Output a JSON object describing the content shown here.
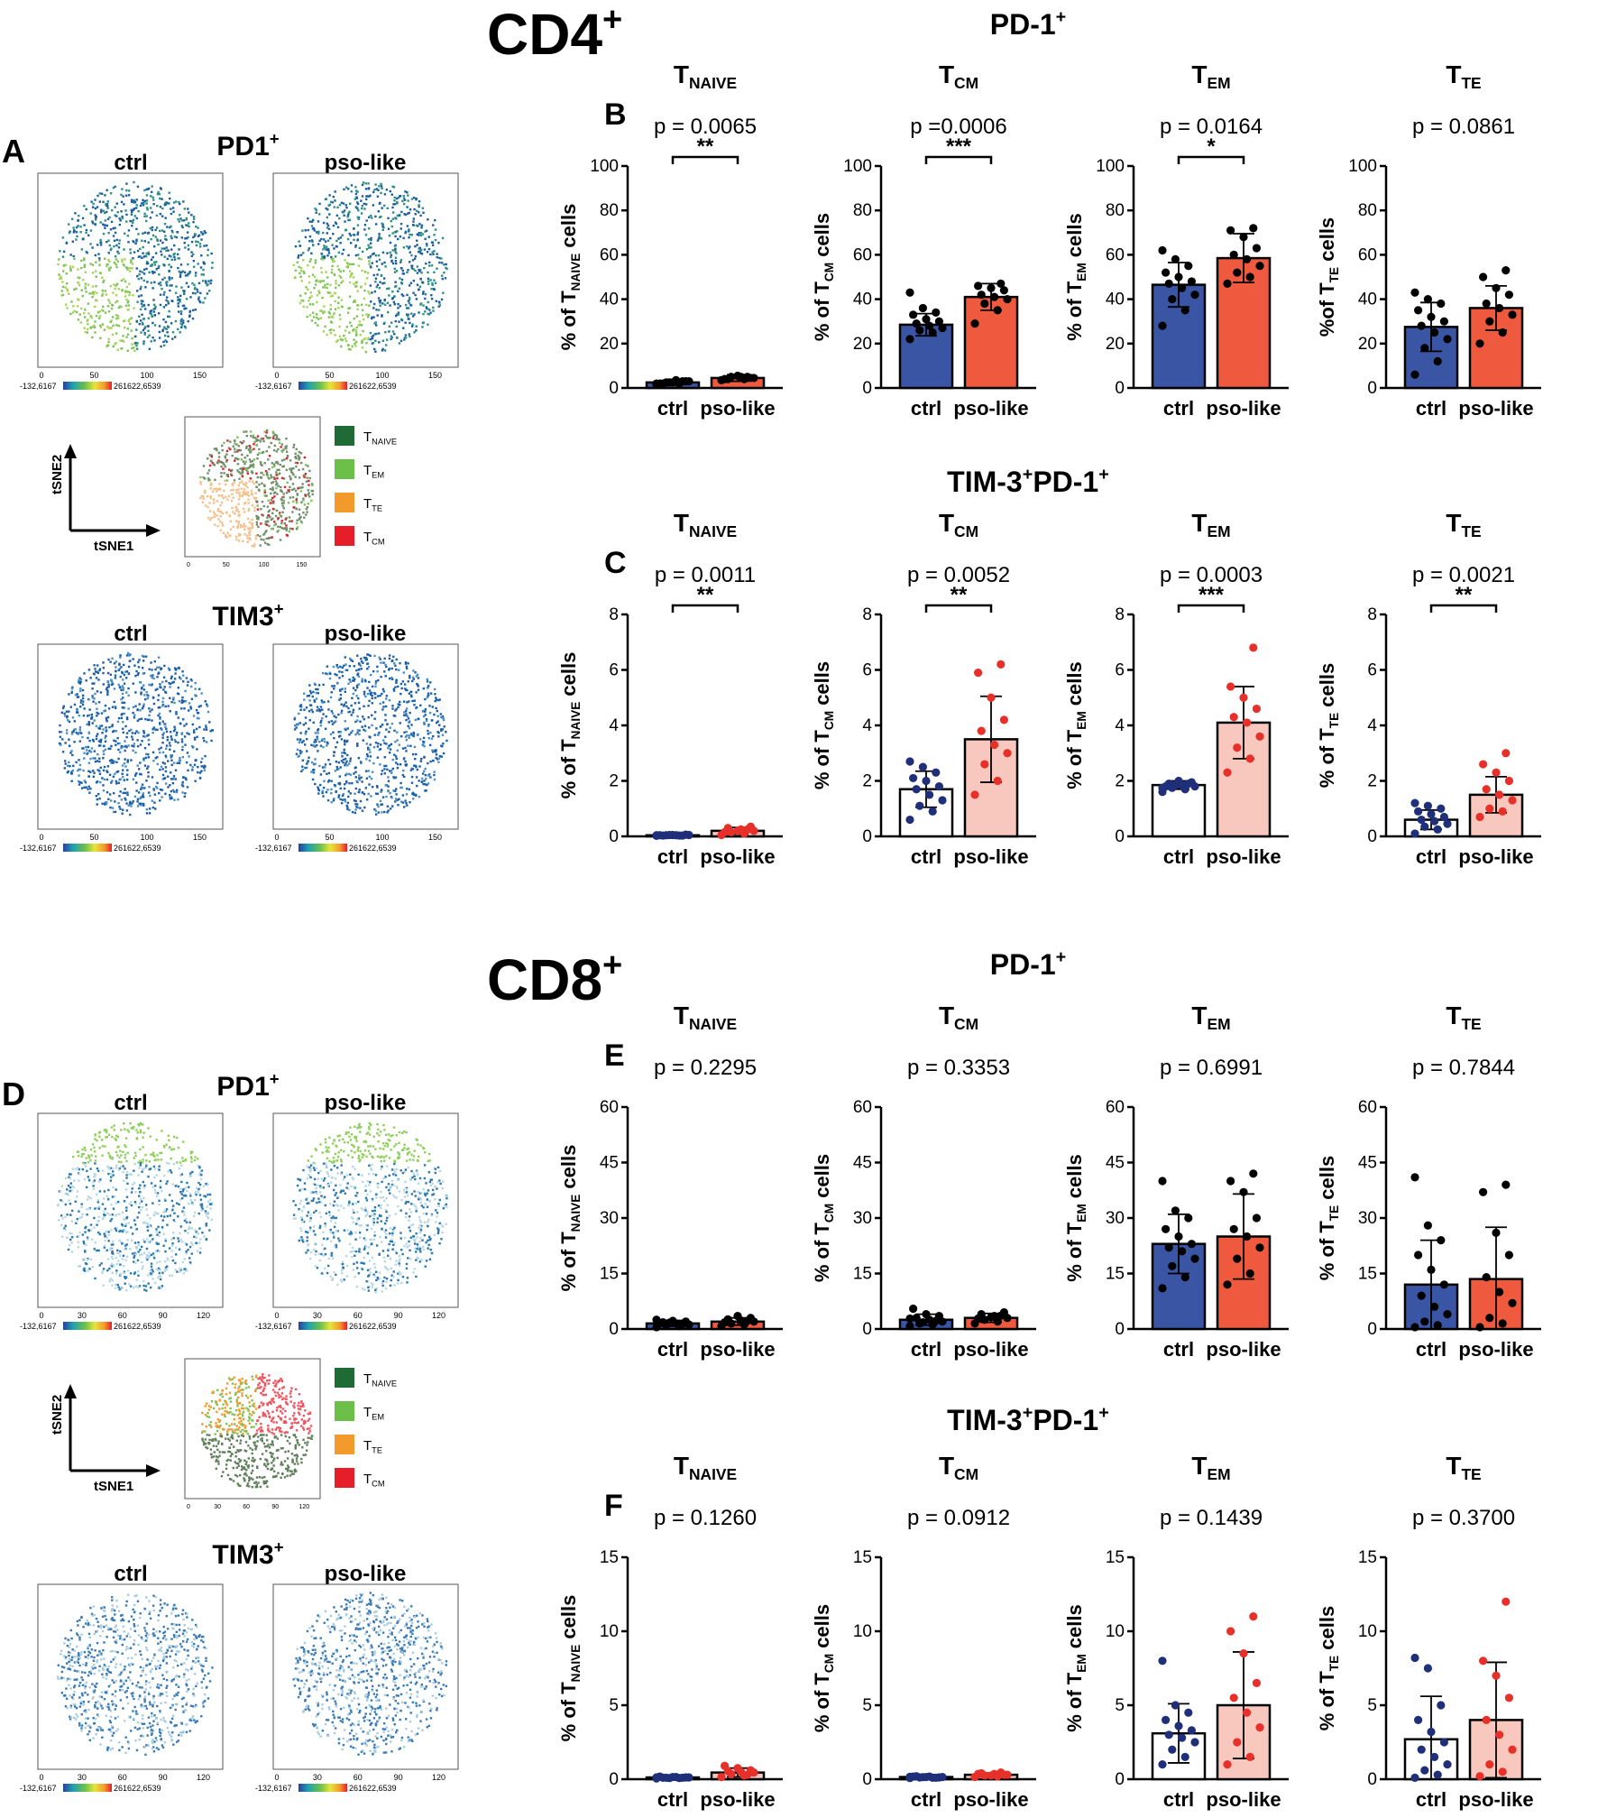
{
  "figure": {
    "cd4_heading": "CD4",
    "cd8_heading": "CD8",
    "heading_sup": "+",
    "panel_letters": [
      "A",
      "B",
      "C",
      "D",
      "E",
      "F"
    ]
  },
  "tsne": {
    "group_labels": [
      "ctrl",
      "pso-like"
    ],
    "pd1_title": "PD1",
    "tim3_title": "TIM3",
    "title_sup": "+",
    "axis_x": "tSNE1",
    "axis_y": "tSNE2",
    "colorbar_min": "-132,6167",
    "colorbar_max": "261622,6539",
    "cd4_ticks": [
      "0",
      "50",
      "100",
      "150"
    ],
    "cd8_ticks": [
      "0",
      "30",
      "60",
      "90",
      "120"
    ],
    "legend": [
      {
        "main": "T",
        "sub": "NAIVE",
        "color": "#1e6b35"
      },
      {
        "main": "T",
        "sub": "EM",
        "color": "#6cc04a"
      },
      {
        "main": "T",
        "sub": "TE",
        "color": "#f39a2c"
      },
      {
        "main": "T",
        "sub": "CM",
        "color": "#e51e2a"
      }
    ]
  },
  "colors": {
    "ctrl_blue": "#3a55a4",
    "ctrl_dot": "#1f2f7a",
    "pso_red": "#ef5a3f",
    "pso_light": "#f8c7bd",
    "pso_dot": "#e8302a",
    "black": "#000000"
  },
  "chart_data": [
    {
      "section": "CD4",
      "group_title": "PD-1",
      "title_sup": "+",
      "panel_letter": "B",
      "subtitle_main": "T",
      "subtitle_sub": "NAIVE",
      "type": "bar",
      "p_value": "p = 0.0065",
      "significance": "**",
      "ylabel_main": "% of T",
      "ylabel_sub": "NAIVE",
      "ylabel_tail": " cells",
      "ylim": [
        0,
        100
      ],
      "yticks": [
        0,
        20,
        40,
        60,
        80,
        100
      ],
      "categories": [
        "ctrl",
        "pso-like"
      ],
      "values": [
        2.5,
        4.5
      ],
      "sd": [
        1.0,
        1.5
      ],
      "style": "black-dots",
      "points": [
        [
          1.5,
          2,
          2.5,
          3,
          3.5,
          2,
          3,
          2.5,
          2,
          3,
          2.5,
          2
        ],
        [
          3.5,
          4,
          5,
          4.5,
          5,
          4,
          4.5,
          5.5,
          4,
          5
        ]
      ]
    },
    {
      "section": "CD4",
      "group_title": "",
      "title_sup": "",
      "panel_letter": "",
      "subtitle_main": "T",
      "subtitle_sub": "CM",
      "type": "bar",
      "p_value": "p =0.0006",
      "significance": "***",
      "ylabel_main": "% of T",
      "ylabel_sub": "CM",
      "ylabel_tail": " cells",
      "ylim": [
        0,
        100
      ],
      "yticks": [
        0,
        20,
        40,
        60,
        80,
        100
      ],
      "categories": [
        "ctrl",
        "pso-like"
      ],
      "values": [
        28.5,
        41
      ],
      "sd": [
        5,
        6
      ],
      "style": "black-dots",
      "points": [
        [
          22,
          25,
          26,
          27,
          28,
          29,
          30,
          31,
          33,
          34,
          36,
          43
        ],
        [
          29,
          35,
          38,
          40,
          41,
          42,
          44,
          45,
          46,
          47
        ]
      ]
    },
    {
      "section": "CD4",
      "group_title": "",
      "title_sup": "",
      "panel_letter": "",
      "subtitle_main": "T",
      "subtitle_sub": "EM",
      "type": "bar",
      "p_value": "p = 0.0164",
      "significance": "*",
      "ylabel_main": "% of T",
      "ylabel_sub": "EM",
      "ylabel_tail": " cells",
      "ylim": [
        0,
        100
      ],
      "yticks": [
        0,
        20,
        40,
        60,
        80,
        100
      ],
      "categories": [
        "ctrl",
        "pso-like"
      ],
      "values": [
        46.5,
        58.5
      ],
      "sd": [
        10,
        11
      ],
      "style": "black-dots",
      "points": [
        [
          28,
          35,
          40,
          42,
          45,
          47,
          48,
          50,
          52,
          55,
          58,
          62
        ],
        [
          47,
          50,
          52,
          55,
          58,
          60,
          63,
          68,
          71,
          72
        ]
      ]
    },
    {
      "section": "CD4",
      "group_title": "",
      "title_sup": "",
      "panel_letter": "",
      "subtitle_main": "T",
      "subtitle_sub": "TE",
      "type": "bar",
      "p_value": "p = 0.0861",
      "significance": "",
      "ylabel_main": "%of T",
      "ylabel_sub": "TE",
      "ylabel_tail": " cells",
      "ylim": [
        0,
        100
      ],
      "yticks": [
        0,
        20,
        40,
        60,
        80,
        100
      ],
      "categories": [
        "ctrl",
        "pso-like"
      ],
      "values": [
        27.5,
        36
      ],
      "sd": [
        11,
        10
      ],
      "style": "black-dots",
      "points": [
        [
          6,
          12,
          18,
          22,
          25,
          28,
          30,
          32,
          35,
          38,
          40,
          43
        ],
        [
          20,
          25,
          30,
          33,
          36,
          38,
          42,
          45,
          50,
          53
        ]
      ]
    },
    {
      "section": "CD4",
      "group_title": "TIM-3",
      "title_sup": "+",
      "title_tail": "PD-1",
      "title_tail_sup": "+",
      "panel_letter": "C",
      "subtitle_main": "T",
      "subtitle_sub": "NAIVE",
      "type": "bar",
      "p_value": "p = 0.0011",
      "significance": "**",
      "ylabel_main": "% of T",
      "ylabel_sub": "NAIVE",
      "ylabel_tail": " cells",
      "ylim": [
        0,
        8
      ],
      "yticks": [
        0,
        2,
        4,
        6,
        8
      ],
      "categories": [
        "ctrl",
        "pso-like"
      ],
      "values": [
        0.04,
        0.2
      ],
      "sd": [
        0.02,
        0.12
      ],
      "style": "colored-dots",
      "points": [
        [
          0.02,
          0.03,
          0.04,
          0.05,
          0.04,
          0.03,
          0.06,
          0.05,
          0.04,
          0.03,
          0.05,
          0.04
        ],
        [
          0.05,
          0.1,
          0.15,
          0.2,
          0.25,
          0.3,
          0.35,
          0.2,
          0.15,
          0.25
        ]
      ]
    },
    {
      "section": "CD4",
      "group_title": "",
      "title_sup": "",
      "panel_letter": "",
      "subtitle_main": "T",
      "subtitle_sub": "CM",
      "type": "bar",
      "p_value": "p = 0.0052",
      "significance": "**",
      "ylabel_main": "% of T",
      "ylabel_sub": "CM",
      "ylabel_tail": " cells",
      "ylim": [
        0,
        8
      ],
      "yticks": [
        0,
        2,
        4,
        6,
        8
      ],
      "categories": [
        "ctrl",
        "pso-like"
      ],
      "values": [
        1.7,
        3.5
      ],
      "sd": [
        0.65,
        1.55
      ],
      "style": "colored-dots",
      "points": [
        [
          0.6,
          0.9,
          1.1,
          1.3,
          1.5,
          1.7,
          1.8,
          2.0,
          2.1,
          2.3,
          2.5,
          2.7
        ],
        [
          1.5,
          2.0,
          2.6,
          3.0,
          3.3,
          3.8,
          4.2,
          5.0,
          5.9,
          6.2
        ]
      ]
    },
    {
      "section": "CD4",
      "group_title": "",
      "title_sup": "",
      "panel_letter": "",
      "subtitle_main": "T",
      "subtitle_sub": "EM",
      "type": "bar",
      "p_value": "p = 0.0003",
      "significance": "***",
      "ylabel_main": "% of T",
      "ylabel_sub": "EM",
      "ylabel_tail": " cells",
      "ylim": [
        0,
        8
      ],
      "yticks": [
        0,
        2,
        4,
        6,
        8
      ],
      "categories": [
        "ctrl",
        "pso-like"
      ],
      "values": [
        1.85,
        4.1
      ],
      "sd": [
        0.15,
        1.3
      ],
      "style": "colored-dots",
      "points": [
        [
          1.6,
          1.7,
          1.75,
          1.8,
          1.85,
          1.9,
          1.95,
          2.0,
          1.8,
          1.9,
          1.85,
          1.75
        ],
        [
          2.3,
          2.8,
          3.2,
          3.6,
          4.1,
          4.3,
          4.6,
          5.0,
          5.4,
          6.8
        ]
      ]
    },
    {
      "section": "CD4",
      "group_title": "",
      "title_sup": "",
      "panel_letter": "",
      "subtitle_main": "T",
      "subtitle_sub": "TE",
      "type": "bar",
      "p_value": "p = 0.0021",
      "significance": "**",
      "ylabel_main": "% of T",
      "ylabel_sub": "TE",
      "ylabel_tail": " cells",
      "ylim": [
        0,
        8
      ],
      "yticks": [
        0,
        2,
        4,
        6,
        8
      ],
      "categories": [
        "ctrl",
        "pso-like"
      ],
      "values": [
        0.6,
        1.5
      ],
      "sd": [
        0.35,
        0.65
      ],
      "style": "colored-dots",
      "points": [
        [
          0.1,
          0.25,
          0.35,
          0.45,
          0.55,
          0.6,
          0.7,
          0.8,
          0.9,
          1.0,
          1.1,
          1.2
        ],
        [
          0.7,
          0.9,
          1.0,
          1.3,
          1.5,
          1.7,
          2.0,
          2.3,
          2.6,
          3.0
        ]
      ]
    },
    {
      "section": "CD8",
      "group_title": "PD-1",
      "title_sup": "+",
      "panel_letter": "E",
      "subtitle_main": "T",
      "subtitle_sub": "NAIVE",
      "type": "bar",
      "p_value": "p = 0.2295",
      "significance": "",
      "ylabel_main": "% of T",
      "ylabel_sub": "NAIVE",
      "ylabel_tail": " cells",
      "ylim": [
        0,
        60
      ],
      "yticks": [
        0,
        15,
        30,
        45,
        60
      ],
      "categories": [
        "ctrl",
        "pso-like"
      ],
      "values": [
        1.5,
        2.0
      ],
      "sd": [
        0.8,
        1.0
      ],
      "style": "black-dots",
      "points": [
        [
          0.5,
          0.8,
          1.0,
          1.2,
          1.5,
          1.8,
          2.0,
          2.2,
          1.5,
          1.3,
          1.7,
          2.5
        ],
        [
          0.8,
          1.2,
          1.5,
          2.0,
          2.3,
          2.6,
          3.0,
          3.5,
          1.8,
          2.2
        ]
      ]
    },
    {
      "section": "CD8",
      "group_title": "",
      "title_sup": "",
      "panel_letter": "",
      "subtitle_main": "T",
      "subtitle_sub": "CM",
      "type": "bar",
      "p_value": "p = 0.3353",
      "significance": "",
      "ylabel_main": "% of T",
      "ylabel_sub": "CM",
      "ylabel_tail": " cells",
      "ylim": [
        0,
        60
      ],
      "yticks": [
        0,
        15,
        30,
        45,
        60
      ],
      "categories": [
        "ctrl",
        "pso-like"
      ],
      "values": [
        2.5,
        3.0
      ],
      "sd": [
        1.5,
        1.2
      ],
      "style": "black-dots",
      "points": [
        [
          0.8,
          1.2,
          1.5,
          2.0,
          2.5,
          3.0,
          3.5,
          4.0,
          5.5,
          2.2,
          1.8,
          2.8
        ],
        [
          1.5,
          2.0,
          2.5,
          3.0,
          3.5,
          4.0,
          4.5,
          3.2,
          2.8,
          3.6
        ]
      ]
    },
    {
      "section": "CD8",
      "group_title": "",
      "title_sup": "",
      "panel_letter": "",
      "subtitle_main": "T",
      "subtitle_sub": "EM",
      "type": "bar",
      "p_value": "p = 0.6991",
      "significance": "",
      "ylabel_main": "% of T",
      "ylabel_sub": "EM",
      "ylabel_tail": " cells",
      "ylim": [
        0,
        60
      ],
      "yticks": [
        0,
        15,
        30,
        45,
        60
      ],
      "categories": [
        "ctrl",
        "pso-like"
      ],
      "values": [
        23,
        25
      ],
      "sd": [
        8,
        11.5
      ],
      "style": "black-dots",
      "points": [
        [
          11,
          14,
          17,
          19,
          21,
          22,
          23,
          25,
          27,
          30,
          32,
          40
        ],
        [
          12,
          15,
          19,
          22,
          25,
          27,
          30,
          37,
          40,
          42
        ]
      ]
    },
    {
      "section": "CD8",
      "group_title": "",
      "title_sup": "",
      "panel_letter": "",
      "subtitle_main": "T",
      "subtitle_sub": "TE",
      "type": "bar",
      "p_value": "p = 0.7844",
      "significance": "",
      "ylabel_main": "% of T",
      "ylabel_sub": "TE",
      "ylabel_tail": " cells",
      "ylim": [
        0,
        60
      ],
      "yticks": [
        0,
        15,
        30,
        45,
        60
      ],
      "categories": [
        "ctrl",
        "pso-like"
      ],
      "values": [
        12,
        13.5
      ],
      "sd": [
        12,
        14
      ],
      "style": "black-dots",
      "points": [
        [
          0.5,
          1.0,
          2.0,
          4.0,
          6.0,
          9.0,
          12.0,
          16.0,
          20.0,
          24.0,
          28.0,
          41.0
        ],
        [
          0.5,
          1.5,
          3.0,
          7.0,
          10.0,
          14.0,
          20.0,
          26.0,
          37.0,
          39.0
        ]
      ]
    },
    {
      "section": "CD8",
      "group_title": "TIM-3",
      "title_sup": "+",
      "title_tail": "PD-1",
      "title_tail_sup": "+",
      "panel_letter": "F",
      "subtitle_main": "T",
      "subtitle_sub": "NAIVE",
      "type": "bar",
      "p_value": "p = 0.1260",
      "significance": "",
      "ylabel_main": "% of T",
      "ylabel_sub": "NAIVE",
      "ylabel_tail": " cells",
      "ylim": [
        0,
        15
      ],
      "yticks": [
        0,
        5,
        10,
        15
      ],
      "categories": [
        "ctrl",
        "pso-like"
      ],
      "values": [
        0.12,
        0.45
      ],
      "sd": [
        0.08,
        0.3
      ],
      "style": "colored-dots",
      "points": [
        [
          0.05,
          0.08,
          0.1,
          0.12,
          0.15,
          0.1,
          0.12,
          0.15,
          0.18,
          0.1,
          0.08,
          0.12
        ],
        [
          0.15,
          0.25,
          0.35,
          0.45,
          0.5,
          0.55,
          0.6,
          0.75,
          0.9,
          0.3
        ]
      ]
    },
    {
      "section": "CD8",
      "group_title": "",
      "title_sup": "",
      "panel_letter": "",
      "subtitle_main": "T",
      "subtitle_sub": "CM",
      "type": "bar",
      "p_value": "p = 0.0912",
      "significance": "",
      "ylabel_main": "% of T",
      "ylabel_sub": "CM",
      "ylabel_tail": " cells",
      "ylim": [
        0,
        15
      ],
      "yticks": [
        0,
        5,
        10,
        15
      ],
      "categories": [
        "ctrl",
        "pso-like"
      ],
      "values": [
        0.15,
        0.3
      ],
      "sd": [
        0.08,
        0.12
      ],
      "style": "colored-dots",
      "points": [
        [
          0.08,
          0.1,
          0.12,
          0.15,
          0.18,
          0.2,
          0.12,
          0.15,
          0.18,
          0.1,
          0.14,
          0.16
        ],
        [
          0.15,
          0.2,
          0.25,
          0.3,
          0.35,
          0.4,
          0.3,
          0.25,
          0.35,
          0.45
        ]
      ]
    },
    {
      "section": "CD8",
      "group_title": "",
      "title_sup": "",
      "panel_letter": "",
      "subtitle_main": "T",
      "subtitle_sub": "EM",
      "type": "bar",
      "p_value": "p = 0.1439",
      "significance": "",
      "ylabel_main": "% of T",
      "ylabel_sub": "EM",
      "ylabel_tail": " cells",
      "ylim": [
        0,
        15
      ],
      "yticks": [
        0,
        5,
        10,
        15
      ],
      "categories": [
        "ctrl",
        "pso-like"
      ],
      "values": [
        3.1,
        5.0
      ],
      "sd": [
        2.0,
        3.6
      ],
      "style": "colored-dots",
      "points": [
        [
          1.0,
          1.5,
          2.0,
          2.5,
          2.8,
          3.0,
          3.3,
          3.6,
          4.0,
          4.5,
          5.0,
          8.0
        ],
        [
          1.0,
          1.5,
          2.5,
          3.5,
          4.5,
          5.5,
          6.5,
          8.5,
          10.0,
          11.0
        ]
      ]
    },
    {
      "section": "CD8",
      "group_title": "",
      "title_sup": "",
      "panel_letter": "",
      "subtitle_main": "T",
      "subtitle_sub": "TE",
      "type": "bar",
      "p_value": "p = 0.3700",
      "significance": "",
      "ylabel_main": "% of T",
      "ylabel_sub": "TE",
      "ylabel_tail": " cells",
      "ylim": [
        0,
        15
      ],
      "yticks": [
        0,
        5,
        10,
        15
      ],
      "categories": [
        "ctrl",
        "pso-like"
      ],
      "values": [
        2.7,
        4.0
      ],
      "sd": [
        2.9,
        3.9
      ],
      "style": "colored-dots",
      "points": [
        [
          0.1,
          0.3,
          0.6,
          1.0,
          1.5,
          2.0,
          2.5,
          3.2,
          4.0,
          5.0,
          7.5,
          8.2
        ],
        [
          0.2,
          0.5,
          1.0,
          2.0,
          3.0,
          4.0,
          5.5,
          7.0,
          8.0,
          12.0
        ]
      ]
    }
  ]
}
